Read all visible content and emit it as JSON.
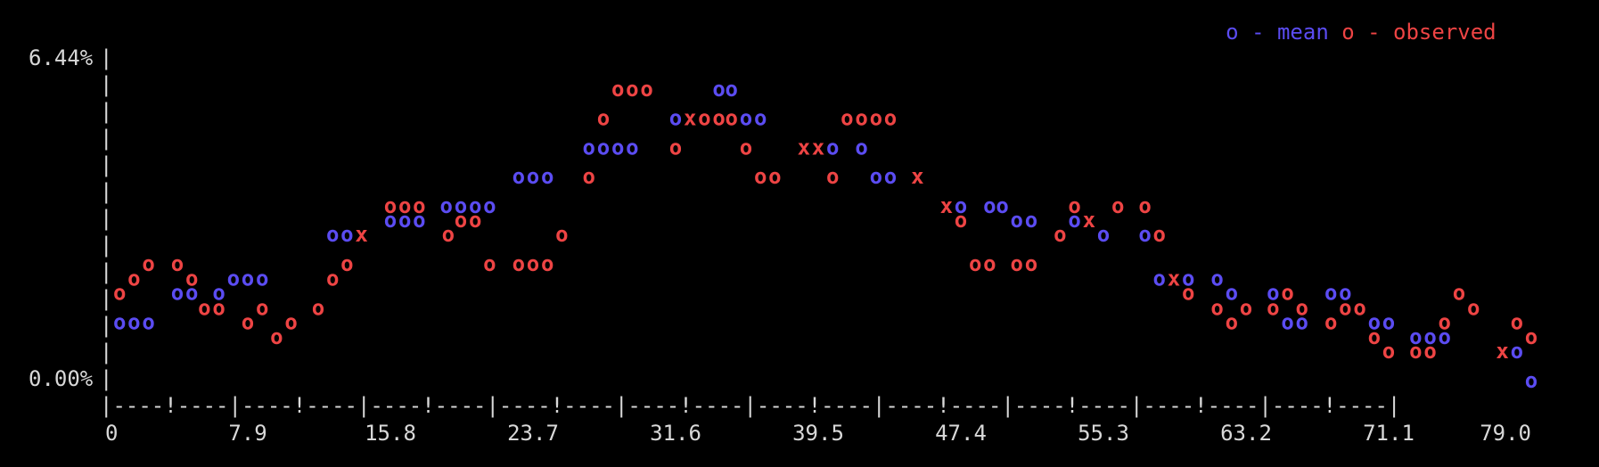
{
  "chart_data": {
    "type": "scatter",
    "title": "",
    "xlabel": "",
    "ylabel": "",
    "y_tick_labels": [
      "6.44%",
      "0.00%"
    ],
    "x_tick_labels": [
      "0",
      "7.9",
      "15.8",
      "23.7",
      "31.6",
      "39.5",
      "47.4",
      "55.3",
      "63.2",
      "71.1",
      "79.0"
    ],
    "x_axis_line": "|----!----|----!----|----!----|----!----|----!----|----!----|----!----|----!----|----!----|----!----|",
    "legend": [
      {
        "symbol": "o",
        "label": " - mean",
        "color": "#5b4cf2"
      },
      {
        "symbol": "o",
        "label": " - observed",
        "color": "#ee4444"
      }
    ],
    "legend_position": "top-right",
    "overlap_symbol": "x",
    "overlap_color": "#ee4444",
    "xlim": [
      0,
      79.0
    ],
    "ylim": [
      0.0,
      6.44
    ],
    "series": [
      {
        "name": "mean",
        "color": "#5b4cf2",
        "x": [
          0.8,
          1.6,
          2.4,
          4.0,
          4.8,
          6.3,
          7.1,
          7.9,
          8.7,
          12.6,
          13.4,
          14.2,
          15.8,
          16.6,
          17.4,
          18.9,
          19.7,
          20.5,
          21.3,
          22.9,
          23.7,
          24.5,
          26.8,
          27.6,
          28.4,
          29.2,
          31.6,
          32.4,
          34.0,
          34.7,
          35.5,
          36.3,
          38.7,
          39.5,
          40.3,
          41.9,
          42.7,
          43.5,
          45.0,
          46.6,
          47.4,
          49.0,
          49.7,
          50.5,
          51.3,
          53.7,
          54.5,
          55.3,
          57.6,
          58.4,
          59.2,
          60.0,
          61.6,
          62.4,
          64.7,
          65.5,
          66.3,
          67.9,
          68.7,
          70.3,
          71.1,
          72.6,
          73.4,
          74.2,
          77.4,
          78.2,
          79.0
        ],
        "y": [
          1.17,
          1.17,
          1.17,
          1.76,
          1.76,
          1.76,
          2.05,
          2.05,
          2.05,
          2.93,
          2.93,
          2.93,
          3.22,
          3.22,
          3.22,
          3.51,
          3.51,
          3.51,
          3.51,
          4.1,
          4.1,
          4.1,
          4.68,
          4.68,
          4.68,
          4.68,
          5.27,
          5.27,
          5.85,
          5.85,
          5.27,
          5.27,
          4.68,
          4.68,
          4.68,
          4.68,
          4.1,
          4.1,
          4.1,
          3.51,
          3.51,
          3.51,
          3.51,
          3.22,
          3.22,
          3.22,
          3.22,
          2.93,
          2.93,
          2.05,
          2.05,
          2.05,
          2.05,
          1.76,
          1.76,
          1.17,
          1.17,
          1.76,
          1.76,
          1.17,
          1.17,
          0.88,
          0.88,
          0.88,
          0.59,
          0.59,
          0.0
        ]
      },
      {
        "name": "observed",
        "color": "#ee4444",
        "x": [
          0.8,
          1.6,
          2.4,
          4.0,
          4.8,
          5.5,
          6.3,
          7.9,
          8.7,
          9.5,
          10.3,
          11.8,
          12.6,
          13.4,
          14.2,
          15.8,
          16.6,
          17.4,
          19.0,
          19.7,
          20.5,
          21.3,
          22.9,
          23.7,
          24.5,
          25.3,
          26.8,
          27.6,
          28.4,
          29.2,
          30.0,
          31.6,
          32.4,
          33.2,
          34.0,
          34.7,
          35.5,
          36.3,
          37.1,
          38.7,
          39.5,
          40.3,
          41.1,
          41.9,
          42.7,
          43.5,
          45.0,
          46.6,
          47.4,
          48.2,
          49.0,
          50.5,
          51.3,
          52.9,
          53.7,
          54.5,
          56.1,
          57.6,
          58.4,
          59.2,
          60.0,
          61.6,
          62.4,
          63.2,
          64.7,
          65.5,
          66.3,
          67.9,
          68.7,
          69.5,
          70.3,
          71.1,
          72.6,
          73.4,
          74.2,
          75.0,
          75.8,
          77.4,
          78.2,
          79.0
        ],
        "y": [
          1.76,
          2.05,
          2.34,
          2.34,
          2.05,
          1.46,
          1.46,
          1.17,
          1.46,
          0.88,
          1.17,
          1.46,
          2.05,
          2.34,
          2.93,
          3.51,
          3.51,
          3.51,
          2.93,
          3.22,
          3.22,
          2.34,
          2.34,
          2.34,
          2.34,
          2.93,
          4.1,
          5.27,
          5.85,
          5.85,
          5.85,
          4.68,
          5.27,
          5.27,
          5.27,
          5.27,
          4.68,
          4.1,
          4.1,
          4.68,
          4.68,
          4.1,
          5.27,
          5.27,
          5.27,
          5.27,
          4.1,
          3.51,
          3.22,
          2.34,
          2.34,
          2.34,
          2.34,
          2.93,
          3.51,
          3.22,
          3.51,
          3.51,
          2.93,
          2.05,
          1.76,
          1.46,
          1.17,
          1.46,
          1.46,
          1.76,
          1.46,
          1.17,
          1.46,
          1.46,
          0.88,
          0.59,
          0.59,
          0.59,
          1.17,
          1.76,
          1.46,
          0.59,
          1.17,
          0.88
        ]
      }
    ]
  }
}
